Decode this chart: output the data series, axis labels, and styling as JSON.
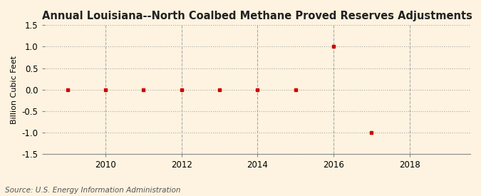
{
  "title": "Annual Louisiana--North Coalbed Methane Proved Reserves Adjustments",
  "ylabel": "Billion Cubic Feet",
  "source": "Source: U.S. Energy Information Administration",
  "background_color": "#fdf3e0",
  "plot_bg_color": "#fdf3e0",
  "years": [
    2009,
    2010,
    2011,
    2012,
    2013,
    2014,
    2015,
    2016,
    2017
  ],
  "values": [
    0.0,
    0.0,
    0.0,
    0.0,
    0.0,
    0.0,
    0.0,
    1.0,
    -1.0
  ],
  "marker_color": "#cc0000",
  "marker_style": "s",
  "marker_size": 3.5,
  "xlim": [
    2008.4,
    2019.6
  ],
  "ylim": [
    -1.5,
    1.5
  ],
  "yticks": [
    -1.5,
    -1.0,
    -0.5,
    0.0,
    0.5,
    1.0,
    1.5
  ],
  "xticks": [
    2010,
    2012,
    2014,
    2016,
    2018
  ],
  "grid_color": "#aaaaaa",
  "grid_linestyle": ":",
  "title_fontsize": 10.5,
  "ylabel_fontsize": 8,
  "tick_fontsize": 8.5,
  "source_fontsize": 7.5
}
